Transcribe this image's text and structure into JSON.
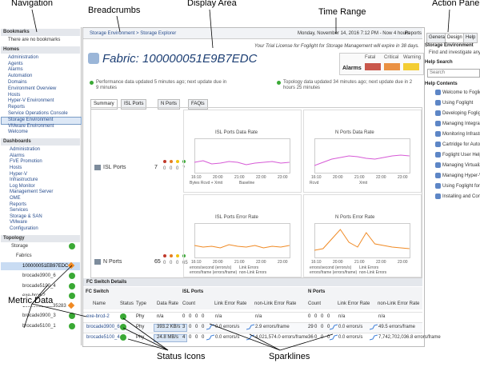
{
  "annotations": {
    "navigation": "Navigation",
    "breadcrumbs": "Breadcrumbs",
    "display_area": "Display Area",
    "time_range": "Time Range",
    "action_panel": "Action Panel",
    "metric_data": "Metric Data",
    "status_icons": "Status Icons",
    "sparklines": "Sparklines"
  },
  "nav": {
    "sections": [
      {
        "title": "Bookmarks",
        "items": [
          "There are no bookmarks"
        ]
      },
      {
        "title": "Homes",
        "items": [
          "Administration",
          "Agents",
          "Alarms",
          "Automation",
          "Domains",
          "Environment Overview",
          "Hosts",
          "Hyper-V Environment",
          "Reports",
          "Service Operations Console",
          "Storage Environment",
          "VMware Environment",
          "Welcome"
        ]
      },
      {
        "title": "Dashboards",
        "items": [
          "Administration",
          "Alarms",
          "FVE Promotion",
          "Hosts",
          "Hyper-V",
          "Infrastructure",
          "Log Monitor",
          "Management Server",
          "OME",
          "Reports",
          "Services",
          "Storage & SAN",
          "VMware",
          "Configuration"
        ]
      },
      {
        "title": "Topology",
        "items": [
          "Storage",
          "Fabrics",
          "100000051EB97EDC",
          "brocade3900_6",
          "brocade5100_4",
          "exe-brcd-2",
          "100000051EB35283",
          "brocade3900_3",
          "brocade5100_1"
        ]
      }
    ]
  },
  "header": {
    "breadcrumb": "Storage Environment > Storage Explorer",
    "time_range": "Monday, November 14, 2016 7:12 PM - Now 4 hours",
    "reports": "Reports",
    "trial": "Your Trial License for Foglight for Storage Management will expire in 38 days.",
    "title": "Fabric: 100000051E9B7EDC",
    "alarms": {
      "label": "Alarms",
      "levels": [
        "Fatal",
        "Critical",
        "Warning"
      ]
    }
  },
  "status": [
    "Performance data updated 5 minutes ago; next update due in 9 minutes",
    "Topology data updated 34 minutes ago; next update due in 2 hours 25 minutes"
  ],
  "tabs": [
    "Summary",
    "ISL Ports",
    "N Ports",
    "FAQts"
  ],
  "summary_rows": [
    {
      "label": "ISL Ports",
      "count": 7,
      "alarm_counts": [
        0,
        0,
        0,
        7
      ]
    },
    {
      "label": "N Ports",
      "count": 65,
      "alarm_counts": [
        0,
        0,
        0,
        65
      ]
    }
  ],
  "charts": [
    {
      "title": "ISL Ports Data Rate",
      "legend": [
        "Bytes Rcvd + Xmit",
        "Baseline"
      ],
      "xticks": [
        "16:10",
        "20:00",
        "21:00",
        "22:00",
        "23:00"
      ]
    },
    {
      "title": "N Ports Data Rate",
      "legend": [
        "Rcvd",
        "Xmit"
      ],
      "xticks": [
        "16:10",
        "20:00",
        "21:00",
        "22:00",
        "23:00"
      ]
    },
    {
      "title": "ISL Ports Error Rate",
      "legend": [
        "errors/second (errors/s)",
        "Link Errors",
        "errors/frame (errors/frame)",
        "non-Link Errors"
      ],
      "xticks": [
        "16:10",
        "20:00",
        "21:00",
        "22:00",
        "23:00"
      ]
    },
    {
      "title": "N Ports Error Rate",
      "legend": [
        "errors/second (errors/s)",
        "Link Errors",
        "errors/frame (errors/frame)",
        "non-Link Errors"
      ],
      "xticks": [
        "16:10",
        "20:00",
        "21:00",
        "22:00",
        "23:00"
      ]
    }
  ],
  "table": {
    "title": "FC Switch Details",
    "group_headers": [
      "FC Switch",
      "ISL Ports",
      "N Ports"
    ],
    "columns": [
      "Name",
      "Status",
      "Type",
      "Data Rate",
      "Count",
      "Link Error Rate",
      "non-Link Error Rate",
      "Count",
      "Link Error Rate",
      "non-Link Error Rate"
    ],
    "rows": [
      {
        "name": "exe-brcd-2",
        "type": "Phy",
        "data_rate": "n/a",
        "isl_counts": [
          0,
          0,
          0,
          0
        ],
        "isl_link": "n/a",
        "isl_nonlink": "n/a",
        "n_counts": [
          0,
          0,
          0,
          0
        ],
        "n_link": "n/a",
        "n_nonlink": "n/a"
      },
      {
        "name": "brocade3900_6",
        "type": "Phy",
        "data_rate": "393.2 KB/s",
        "isl_counts": [
          3,
          0,
          0,
          0
        ],
        "isl_link": "0.0 errors/s",
        "isl_nonlink": "2.9 errors/frame",
        "n_counts": [
          29,
          0,
          0,
          0
        ],
        "n_link": "0.0 errors/s",
        "n_nonlink": "49.5 errors/frame"
      },
      {
        "name": "brocade5100_4",
        "type": "Phy",
        "data_rate": "24.8 MB/s",
        "isl_counts": [
          4,
          0,
          0,
          0
        ],
        "isl_link": "0.0 errors/s",
        "isl_nonlink": "4,021,574.0 errors/frame",
        "n_counts": [
          36,
          0,
          0,
          0
        ],
        "n_link": "0.0 errors/s",
        "n_nonlink": "7,742,702,036.8 errors/frame"
      }
    ]
  },
  "action_panel": {
    "tabs": [
      "General",
      "Design",
      "Help"
    ],
    "context_title": "Storage Environment",
    "context_text": "Find and investigate any c...",
    "search_title": "Help Search",
    "search_placeholder": "Search",
    "contents_title": "Help Contents",
    "contents": [
      "Welcome to Foglight",
      "Using Foglight",
      "Developing Foglight",
      "Managing Integrati...",
      "Monitoring Infrastr...",
      "Cartridge for Autom...",
      "Foglight User Help",
      "Managing Virtualiz...",
      "Managing Hyper-V",
      "Using Foglight for S...",
      "Installing and Conf..."
    ]
  }
}
